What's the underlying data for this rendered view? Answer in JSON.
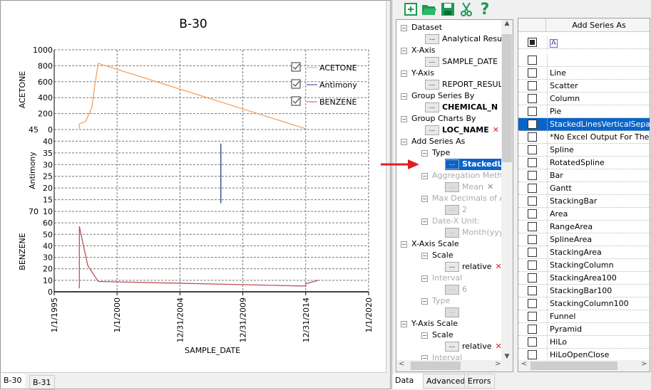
{
  "chart_tabs": [
    {
      "label": "B-30",
      "active": true
    },
    {
      "label": "B-31",
      "active": false
    }
  ],
  "chart_data": {
    "type": "line",
    "title": "B-30",
    "xlabel": "SAMPLE_DATE",
    "x_ticks": [
      "1/1/1995",
      "1/1/2000",
      "12/31/2004",
      "12/31/2009",
      "12/31/2014",
      "1/1/2020"
    ],
    "xlim": [
      "1995-01-01",
      "2020-01-01"
    ],
    "grid": true,
    "legend_placement": "top-right",
    "panels": [
      {
        "ylabel": "ACETONE",
        "ylim": [
          0,
          1000
        ],
        "ticks": [
          0,
          200,
          400,
          600,
          800,
          1000
        ]
      },
      {
        "ylabel": "Antimony",
        "ylim": [
          10,
          45
        ],
        "ticks": [
          10,
          15,
          20,
          25,
          30,
          35,
          40,
          45
        ]
      },
      {
        "ylabel": "BENZENE",
        "ylim": [
          0,
          70
        ],
        "ticks": [
          0,
          10,
          20,
          30,
          40,
          50,
          60,
          70
        ]
      }
    ],
    "series": [
      {
        "name": "ACETONE",
        "panel": 0,
        "color": "#f4a060",
        "checked": true,
        "points": [
          [
            "1997-01-01",
            10
          ],
          [
            "1997-01-01",
            70
          ],
          [
            "1997-07-01",
            100
          ],
          [
            "1998-01-01",
            280
          ],
          [
            "1998-03-01",
            480
          ],
          [
            "1998-07-01",
            830
          ],
          [
            "2014-12-31",
            10
          ]
        ]
      },
      {
        "name": "Antimony",
        "panel": 1,
        "color": "#2a3a8a",
        "checked": true,
        "points": [
          [
            "2008-04-01",
            39
          ],
          [
            "2008-04-01",
            13.5
          ]
        ]
      },
      {
        "name": "BENZENE",
        "panel": 2,
        "color": "#c0505a",
        "checked": true,
        "points": [
          [
            "1997-01-01",
            3
          ],
          [
            "1997-01-01",
            57
          ],
          [
            "1997-05-01",
            40
          ],
          [
            "1997-09-01",
            23
          ],
          [
            "1998-07-01",
            9
          ],
          [
            "2014-12-31",
            5
          ],
          [
            "2014-12-31",
            7
          ],
          [
            "2016-01-01",
            10
          ]
        ]
      }
    ]
  },
  "toolbar": {
    "icons": [
      "new-chart-icon",
      "open-folder-icon",
      "save-icon",
      "cut-icon",
      "help-icon"
    ]
  },
  "tree": [
    {
      "label": "Dataset",
      "level": 0,
      "y": 39
    },
    {
      "label": "Analytical Result",
      "level": 1,
      "leaf": true,
      "y": 55
    },
    {
      "label": "X-Axis",
      "level": 0,
      "y": 71
    },
    {
      "label": "SAMPLE_DATE",
      "level": 1,
      "leaf": true,
      "y": 87,
      "x": true
    },
    {
      "label": "Y-Axis",
      "level": 0,
      "y": 103
    },
    {
      "label": "REPORT_RESUL",
      "level": 1,
      "leaf": true,
      "y": 119
    },
    {
      "label": "Group Series By",
      "level": 0,
      "y": 135
    },
    {
      "label": "CHEMICAL_N",
      "level": 1,
      "leaf": true,
      "bold": true,
      "y": 151
    },
    {
      "label": "Group Charts By",
      "level": 0,
      "y": 167
    },
    {
      "label": "LOC_NAME",
      "level": 1,
      "leaf": true,
      "bold": true,
      "x": true,
      "y": 183
    },
    {
      "label": "Add Series As",
      "level": 0,
      "y": 199
    },
    {
      "label": "Type",
      "level": 1,
      "y": 215
    },
    {
      "label": "StackedLin",
      "level": 2,
      "leaf": true,
      "selected": true,
      "y": 231
    },
    {
      "label": "Aggregation Method",
      "level": 1,
      "disabled": true,
      "y": 247
    },
    {
      "label": "Mean",
      "level": 2,
      "leaf": true,
      "disabled": true,
      "xg": true,
      "y": 263
    },
    {
      "label": "Max Decimals of Ag",
      "level": 1,
      "disabled": true,
      "y": 279
    },
    {
      "label": "2",
      "level": 2,
      "leaf": true,
      "disabled": true,
      "y": 295
    },
    {
      "label": "Date-X Unit:",
      "level": 1,
      "disabled": true,
      "y": 311
    },
    {
      "label": "Month(yyyy-",
      "level": 2,
      "leaf": true,
      "disabled": true,
      "y": 327
    },
    {
      "label": "X-Axis Scale",
      "level": 0,
      "y": 343
    },
    {
      "label": "Scale",
      "level": 1,
      "y": 359
    },
    {
      "label": "relative",
      "level": 2,
      "leaf": true,
      "x": true,
      "y": 375
    },
    {
      "label": "Interval",
      "level": 1,
      "disabled": true,
      "y": 391
    },
    {
      "label": "6",
      "level": 2,
      "leaf": true,
      "disabled": true,
      "y": 407
    },
    {
      "label": "Type",
      "level": 1,
      "disabled": true,
      "y": 423
    },
    {
      "label": "",
      "level": 2,
      "leaf": true,
      "disabled": true,
      "y": 439
    },
    {
      "label": "Y-Axis Scale",
      "level": 0,
      "y": 455
    },
    {
      "label": "Scale",
      "level": 1,
      "y": 471
    },
    {
      "label": "relative",
      "level": 2,
      "leaf": true,
      "x": true,
      "y": 487
    },
    {
      "label": "Interval",
      "level": 1,
      "disabled": true,
      "y": 503
    }
  ],
  "grid": {
    "header": "Add Series As",
    "filter_icon": "A",
    "rows": [
      {
        "label": "",
        "checked": false
      },
      {
        "label": "Line",
        "checked": false
      },
      {
        "label": "Scatter",
        "checked": false
      },
      {
        "label": "Column",
        "checked": false
      },
      {
        "label": "Pie",
        "checked": false
      },
      {
        "label": "StackedLinesVerticalSeparated",
        "checked": true,
        "selected": true
      },
      {
        "label": "*No Excel Output For The B",
        "checked": false
      },
      {
        "label": "Spline",
        "checked": false
      },
      {
        "label": "RotatedSpline",
        "checked": false
      },
      {
        "label": "Bar",
        "checked": false
      },
      {
        "label": "Gantt",
        "checked": false
      },
      {
        "label": "StackingBar",
        "checked": false
      },
      {
        "label": "Area",
        "checked": false
      },
      {
        "label": "RangeArea",
        "checked": false
      },
      {
        "label": "SplineArea",
        "checked": false
      },
      {
        "label": "StackingArea",
        "checked": false
      },
      {
        "label": "StackingColumn",
        "checked": false
      },
      {
        "label": "StackingArea100",
        "checked": false
      },
      {
        "label": "StackingBar100",
        "checked": false
      },
      {
        "label": "StackingColumn100",
        "checked": false
      },
      {
        "label": "Funnel",
        "checked": false
      },
      {
        "label": "Pyramid",
        "checked": false
      },
      {
        "label": "HiLo",
        "checked": false
      },
      {
        "label": "HiLoOpenClose",
        "checked": false
      }
    ]
  },
  "panel_tabs": [
    {
      "label": "Data",
      "active": true
    },
    {
      "label": "Advanced",
      "active": false
    },
    {
      "label": "Errors",
      "active": false
    }
  ],
  "colors": {
    "selection": "#0a64c8",
    "arrow": "#e02020",
    "toolbar_green": "#1a9a50"
  }
}
